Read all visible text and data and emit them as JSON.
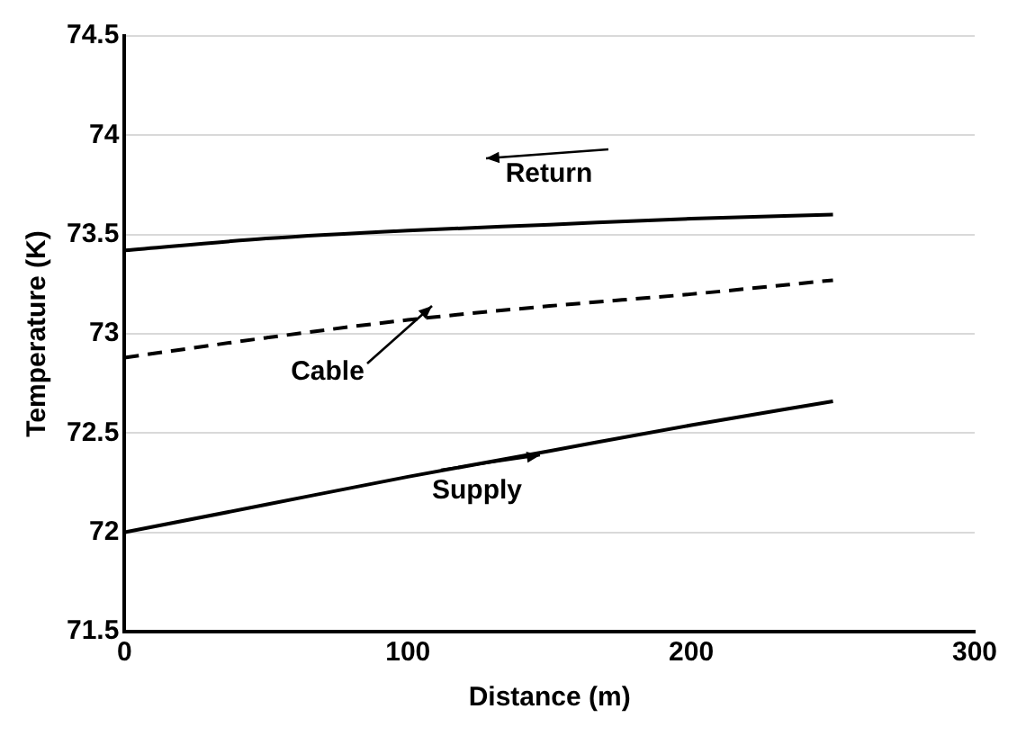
{
  "chart_data": {
    "type": "line",
    "xlabel": "Distance (m)",
    "ylabel": "Temperature (K)",
    "x": [
      0,
      50,
      100,
      150,
      200,
      250
    ],
    "series": [
      {
        "color": "#000000",
        "line_style": "solid",
        "values": [
          73.42,
          73.48,
          73.52,
          73.55,
          73.58,
          73.6
        ]
      },
      {
        "color": "#000000",
        "line_style": "dashed",
        "values": [
          72.88,
          72.98,
          73.07,
          73.14,
          73.2,
          73.27
        ]
      },
      {
        "color": "#000000",
        "line_style": "solid",
        "values": [
          72.0,
          72.14,
          72.28,
          72.41,
          72.54,
          72.66
        ]
      }
    ],
    "xlim": [
      0,
      300
    ],
    "xticks": [
      0,
      100,
      200,
      300
    ],
    "ylim": [
      71.5,
      74.5
    ],
    "yticks": [
      71.5,
      72,
      72.5,
      73,
      73.5,
      74,
      74.5
    ],
    "grid": "y",
    "legend": false,
    "marker": "none",
    "annotations": [
      "Return",
      "Cable",
      "Supply"
    ]
  }
}
